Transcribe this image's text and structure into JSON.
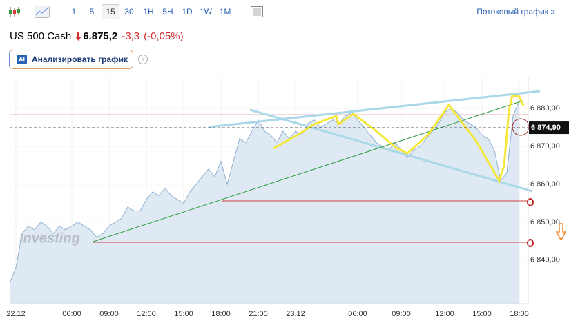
{
  "toolbar": {
    "timeframes": [
      "1",
      "5",
      "15",
      "30",
      "1H",
      "5H",
      "1D",
      "1W",
      "1M"
    ],
    "selected_timeframe": "15",
    "stream_link": "Потоковый график »"
  },
  "quote": {
    "name": "US 500 Cash",
    "price": "6.875,2",
    "change": "-3,3",
    "change_pct": "(-0,05%)"
  },
  "ai_badge": "AI",
  "analyze_button": "Анализировать график",
  "watermark": "Investing",
  "chart_data": {
    "type": "area",
    "color": "#8fb0cf",
    "fill": "#dfe9f4",
    "grid": true,
    "categories": [
      null,
      "22.12",
      null,
      null,
      null,
      null,
      null,
      null,
      null,
      null,
      "06:00",
      null,
      null,
      null,
      null,
      null,
      "09:00",
      null,
      null,
      null,
      null,
      null,
      "12:00",
      null,
      null,
      null,
      null,
      null,
      "15:00",
      null,
      null,
      null,
      null,
      null,
      "18:00",
      null,
      null,
      null,
      null,
      null,
      "21:00",
      null,
      null,
      null,
      null,
      null,
      "23.12",
      null,
      null,
      null,
      null,
      null,
      null,
      null,
      null,
      null,
      "06:00",
      null,
      null,
      null,
      null,
      null,
      null,
      "09:00",
      null,
      null,
      null,
      null,
      null,
      null,
      "12:00",
      null,
      null,
      null,
      null,
      null,
      "15:00",
      null,
      null,
      null,
      null,
      null,
      "18:00"
    ],
    "values": [
      6834,
      6838,
      6847,
      6849,
      6848,
      6850,
      6849,
      6847,
      6849,
      6848,
      6849,
      6850,
      6849,
      6848,
      6846,
      6847,
      6849,
      6850,
      6851,
      6854,
      6853,
      6853,
      6856,
      6858,
      6857,
      6859,
      6857,
      6856,
      6855,
      6858,
      6860,
      6862,
      6864,
      6862,
      6866,
      6860,
      6866,
      6872,
      6871,
      6874,
      6877,
      6874,
      6873,
      6871,
      6874,
      6872,
      6874,
      6873,
      6876,
      6877,
      6875,
      6876,
      6877,
      6876,
      6878,
      6879,
      6877,
      6875,
      6873,
      6871,
      6870,
      6869,
      6871,
      6869,
      6867,
      6869,
      6870,
      6872,
      6874,
      6876,
      6879,
      6880,
      6879,
      6877,
      6876,
      6875,
      6873,
      6872,
      6869,
      6861,
      6863,
      6878,
      6882
    ],
    "ylim": [
      6828.5,
      6888.2
    ],
    "yticks": [
      {
        "value": 6840,
        "label": "6 840,00"
      },
      {
        "value": 6850,
        "label": "6 850,00"
      },
      {
        "value": 6860,
        "label": "6 860,00"
      },
      {
        "value": 6870,
        "label": "6 870,00"
      },
      {
        "value": 6880,
        "label": "6 880,00"
      }
    ],
    "current_price": {
      "value": 6874.9,
      "label": "6 874,90"
    }
  }
}
